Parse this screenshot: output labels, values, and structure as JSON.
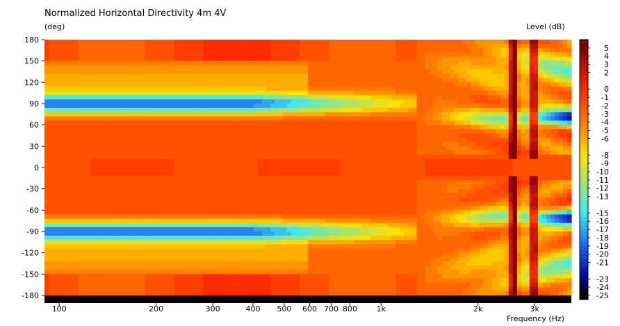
{
  "chart_data": {
    "type": "heatmap",
    "title": "Normalized Horizontal Directivity 4m 4V",
    "ylabel": "(deg)",
    "xlabel": "Frequency  (Hz)",
    "colorbar_label": "Level  (dB)",
    "x_scale": "log",
    "xlim": [
      90,
      3900
    ],
    "ylim": [
      -180,
      180
    ],
    "x_ticks": [
      {
        "value": 100,
        "label": "100"
      },
      {
        "value": 200,
        "label": "200"
      },
      {
        "value": 300,
        "label": "300"
      },
      {
        "value": 400,
        "label": "400"
      },
      {
        "value": 500,
        "label": "500"
      },
      {
        "value": 600,
        "label": "600"
      },
      {
        "value": 700,
        "label": "700"
      },
      {
        "value": 800,
        "label": "800"
      },
      {
        "value": 1000,
        "label": "1k"
      },
      {
        "value": 2000,
        "label": "2k"
      },
      {
        "value": 3000,
        "label": "3k"
      }
    ],
    "y_ticks": [
      180,
      150,
      120,
      90,
      60,
      30,
      0,
      -30,
      -60,
      -90,
      -120,
      -150,
      -180
    ],
    "colorbar_ticks": [
      5,
      4,
      3,
      2,
      0,
      -1,
      -2,
      -3,
      -4,
      -5,
      -6,
      -8,
      -9,
      -10,
      -11,
      -12,
      -13,
      -15,
      -16,
      -17,
      -18,
      -19,
      -20,
      -21,
      -23,
      -24,
      -25
    ],
    "color_range_db": [
      -25,
      6
    ],
    "colors": {
      "top": "#7a0000",
      "red": "#ff2a00",
      "orange": "#ff7a00",
      "yellow": "#ffe000",
      "cyan": "#40e8f0",
      "blue": "#2060f0",
      "deep_blue": "#000090",
      "bottom": "#000000"
    }
  }
}
